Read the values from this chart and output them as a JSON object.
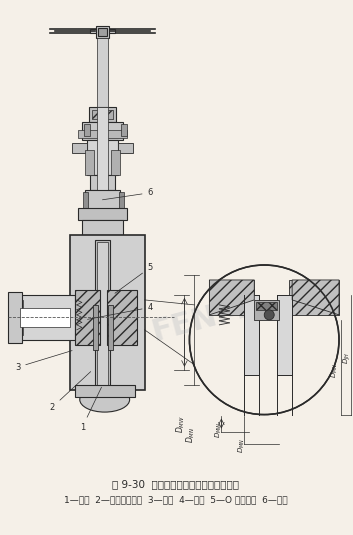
{
  "title": "图 9-30  单向密封单闸板平行式闸阀结构",
  "legend": "1—闸板  2—阀座活动套筒  3—阀体  4—弹簧  5—O 形密封圈  6—阀杆",
  "bg_color": "#f5f0e8",
  "line_color": "#2a2a2a",
  "hatch_color": "#2a2a2a",
  "title_fontsize": 7.5,
  "legend_fontsize": 6.5,
  "fig_width": 3.53,
  "fig_height": 5.35,
  "watermark": "FENM"
}
